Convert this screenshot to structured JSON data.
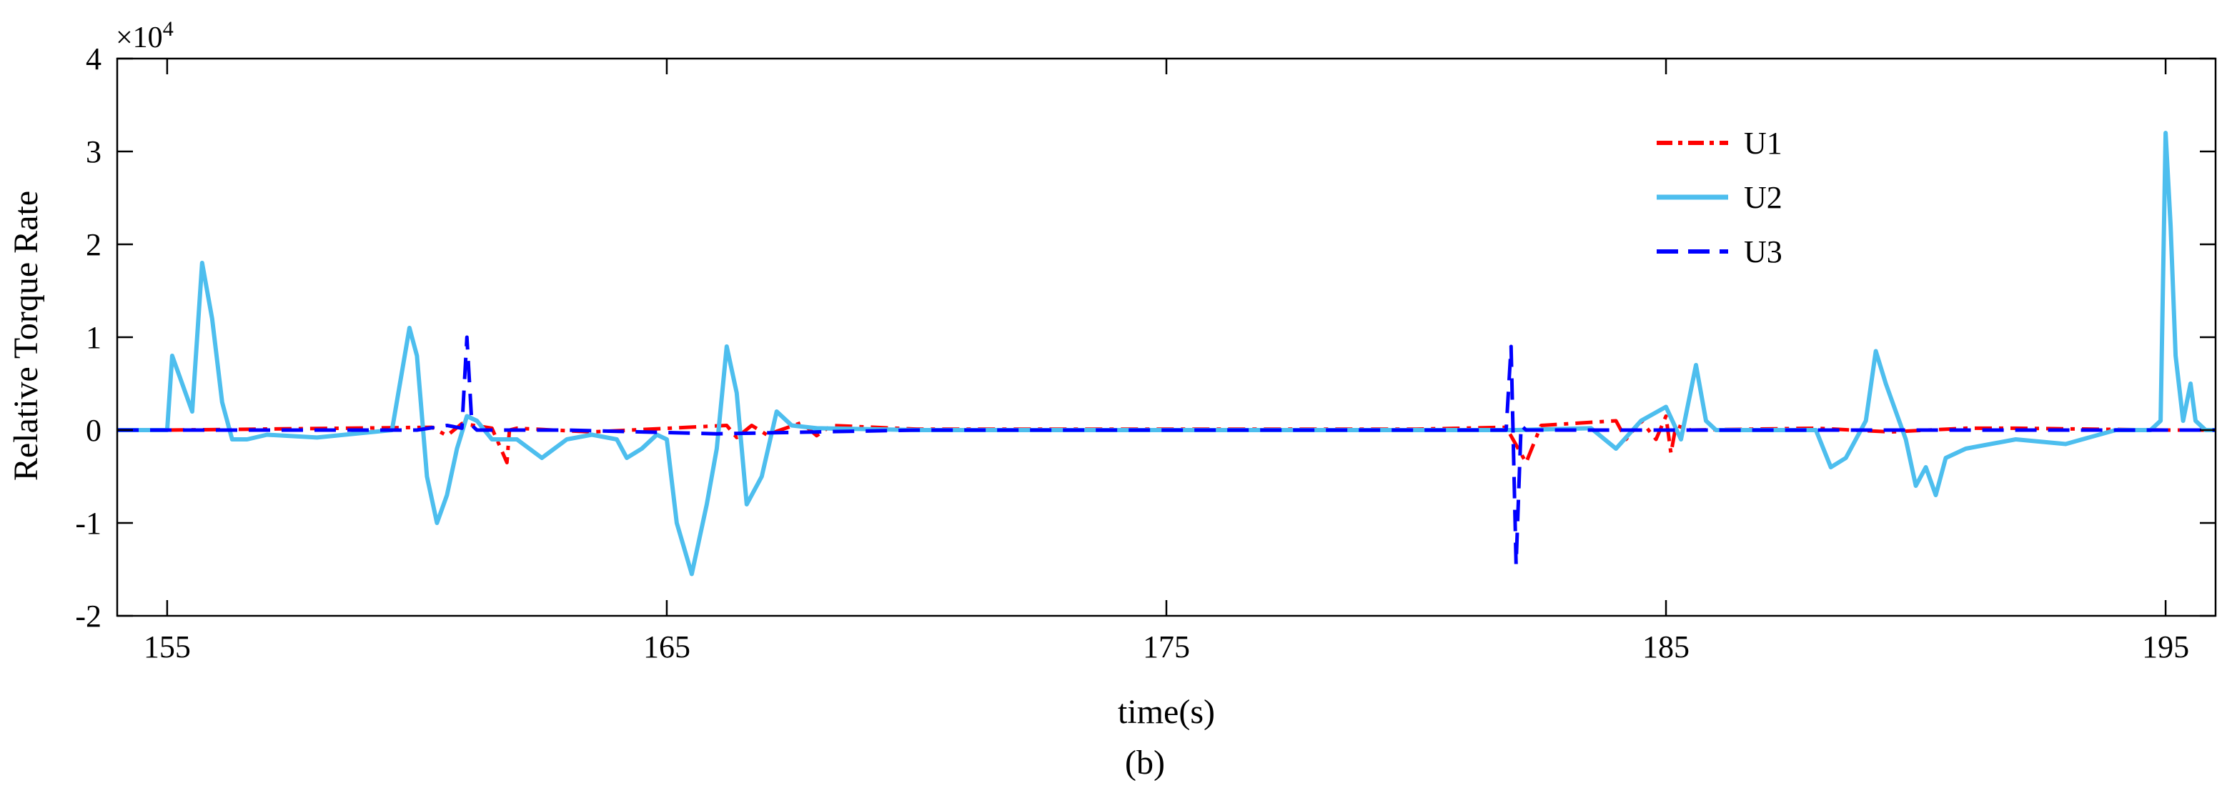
{
  "chart_data": {
    "type": "line",
    "title": "",
    "xlabel": "time(s)",
    "ylabel": "Relative Torque Rate",
    "y_multiplier": "×10",
    "y_multiplier_exp": "4",
    "caption": "(b)",
    "xlim": [
      154,
      196
    ],
    "ylim": [
      -2,
      4
    ],
    "x_ticks": [
      155,
      165,
      175,
      185,
      195
    ],
    "y_ticks": [
      -2,
      -1,
      0,
      1,
      2,
      3,
      4
    ],
    "grid": false,
    "legend_position": "top-right",
    "series": [
      {
        "name": "U1",
        "color": "#ff0000",
        "style": "dash-dot",
        "x": [
          155.0,
          160.3,
          160.6,
          160.9,
          161.5,
          161.8,
          161.85,
          162.0,
          163.5,
          166.2,
          166.4,
          166.7,
          167.0,
          167.7,
          168.0,
          168.3,
          170.0,
          175.0,
          180.0,
          181.8,
          182.2,
          182.5,
          184.0,
          184.2,
          184.5,
          184.8,
          185.0,
          185.1,
          185.2,
          185.5,
          188.0,
          189.5,
          191.0,
          192.0,
          195.0,
          196.0
        ],
        "y": [
          0.0,
          0.03,
          -0.06,
          0.07,
          0.02,
          -0.35,
          0.0,
          0.02,
          -0.02,
          0.05,
          -0.08,
          0.05,
          -0.05,
          0.08,
          -0.06,
          0.05,
          0.01,
          0.01,
          0.01,
          0.03,
          -0.35,
          0.05,
          0.1,
          -0.1,
          0.1,
          -0.1,
          0.15,
          -0.25,
          0.05,
          0.0,
          0.02,
          -0.02,
          0.02,
          0.02,
          0.0,
          0.0
        ]
      },
      {
        "name": "U2",
        "color": "#4dbeee",
        "style": "solid",
        "x": [
          154.0,
          155.0,
          155.1,
          155.3,
          155.5,
          155.7,
          155.9,
          156.1,
          156.3,
          156.6,
          157.0,
          158.0,
          159.5,
          159.85,
          160.0,
          160.2,
          160.4,
          160.6,
          160.8,
          161.0,
          161.2,
          161.5,
          162.0,
          162.5,
          163.0,
          163.5,
          164.0,
          164.2,
          164.5,
          164.8,
          165.0,
          165.2,
          165.5,
          165.8,
          166.0,
          166.2,
          166.4,
          166.6,
          166.9,
          167.2,
          167.5,
          168.0,
          170.0,
          175.0,
          180.0,
          182.0,
          183.5,
          184.0,
          184.5,
          185.0,
          185.3,
          185.6,
          185.8,
          186.0,
          187.0,
          188.0,
          188.3,
          188.6,
          189.0,
          189.2,
          189.4,
          189.6,
          189.8,
          190.0,
          190.2,
          190.4,
          190.6,
          191.0,
          192.0,
          193.0,
          194.0,
          194.7,
          194.9,
          195.0,
          195.1,
          195.2,
          195.35,
          195.5,
          195.6,
          195.8,
          196.0
        ],
        "y": [
          0.0,
          0.0,
          0.8,
          0.5,
          0.2,
          1.8,
          1.2,
          0.3,
          -0.1,
          -0.1,
          -0.05,
          -0.08,
          0.0,
          1.1,
          0.8,
          -0.5,
          -1.0,
          -0.7,
          -0.2,
          0.15,
          0.1,
          -0.1,
          -0.1,
          -0.3,
          -0.1,
          -0.05,
          -0.1,
          -0.3,
          -0.2,
          -0.05,
          -0.1,
          -1.0,
          -1.55,
          -0.8,
          -0.2,
          0.9,
          0.4,
          -0.8,
          -0.5,
          0.2,
          0.05,
          0.02,
          0.0,
          0.0,
          0.0,
          0.0,
          0.02,
          -0.2,
          0.1,
          0.25,
          -0.1,
          0.7,
          0.1,
          0.0,
          0.0,
          0.0,
          -0.4,
          -0.3,
          0.1,
          0.85,
          0.5,
          0.2,
          -0.1,
          -0.6,
          -0.4,
          -0.7,
          -0.3,
          -0.2,
          -0.1,
          -0.15,
          0.0,
          0.0,
          0.1,
          3.2,
          2.2,
          0.8,
          0.1,
          0.5,
          0.1,
          0.0,
          0.0
        ]
      },
      {
        "name": "U3",
        "color": "#0000ff",
        "style": "dashed",
        "x": [
          154.0,
          160.0,
          160.6,
          160.9,
          161.0,
          161.1,
          161.2,
          163.0,
          166.0,
          170.0,
          175.0,
          180.0,
          181.8,
          181.9,
          182.0,
          182.1,
          182.2,
          184.0,
          188.0,
          196.0
        ],
        "y": [
          0.0,
          0.0,
          0.05,
          0.02,
          1.0,
          0.05,
          0.0,
          0.0,
          -0.04,
          0.0,
          0.0,
          0.0,
          0.0,
          0.9,
          -1.45,
          0.05,
          0.0,
          0.0,
          0.0,
          0.0
        ]
      }
    ]
  }
}
